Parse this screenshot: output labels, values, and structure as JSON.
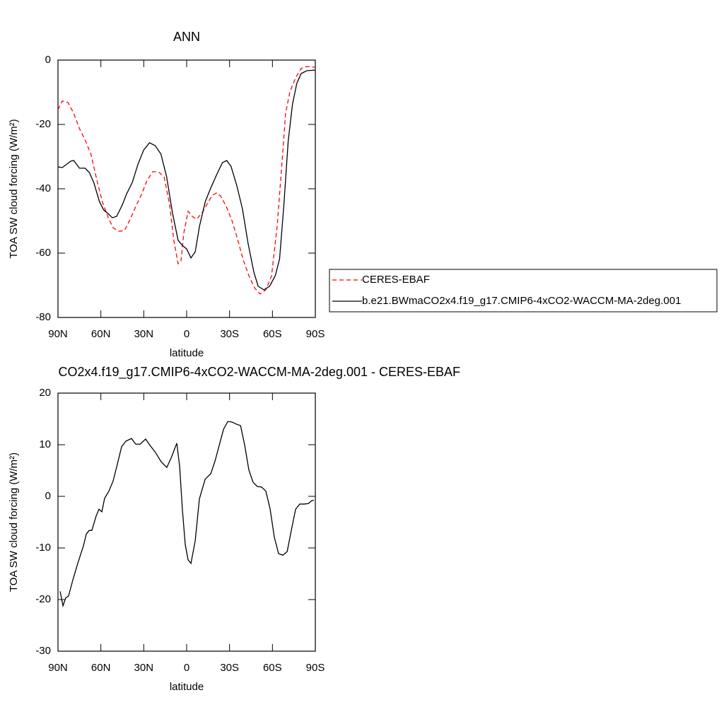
{
  "chart_data": [
    {
      "type": "line",
      "title": "ANN",
      "x_label": "latitude",
      "y_label": "TOA SW cloud forcing (W/m²)",
      "xlim": [
        90,
        -90
      ],
      "xticks": [
        {
          "value": 90,
          "label": "90N"
        },
        {
          "value": 60,
          "label": "60N"
        },
        {
          "value": 30,
          "label": "30N"
        },
        0,
        {
          "value": -30,
          "label": "30S"
        },
        {
          "value": -60,
          "label": "60S"
        },
        {
          "value": -90,
          "label": "90S"
        }
      ],
      "ylim": [
        -80,
        0
      ],
      "yticks": [
        -80,
        -60,
        -40,
        -20,
        0
      ],
      "legend": true,
      "series": [
        {
          "name": "CERES-EBAF",
          "color": "#ff0000",
          "dash": true,
          "x": [
            90,
            87,
            83,
            79,
            75,
            71,
            67,
            63,
            59,
            55,
            51.5,
            47.5,
            43.5,
            39.5,
            35.6,
            31.6,
            27.7,
            23.7,
            19.8,
            15.8,
            11.9,
            9,
            6,
            4,
            2,
            -1,
            -4,
            -7,
            -11,
            -15,
            -18,
            -21,
            -23.7,
            -27.7,
            -31.7,
            -35.6,
            -39.6,
            -43.5,
            -47.5,
            -51.4,
            -55.4,
            -59.4,
            -63.3,
            -66.3,
            -69.2,
            -72.2,
            -76.2,
            -80.1,
            -84,
            -90
          ],
          "values": [
            -15.4,
            -12.7,
            -13.2,
            -16.5,
            -21.3,
            -24.8,
            -29.2,
            -36.9,
            -44,
            -48.8,
            -52.1,
            -53.2,
            -53,
            -49.5,
            -45.5,
            -41.8,
            -37.4,
            -34.7,
            -34.7,
            -36.3,
            -45,
            -56,
            -63.3,
            -62.6,
            -53.8,
            -47,
            -48.6,
            -49.5,
            -47.3,
            -44.2,
            -42,
            -41.3,
            -42.2,
            -45.5,
            -49.9,
            -55.6,
            -62.2,
            -67,
            -70.8,
            -72.7,
            -71.4,
            -67,
            -51.6,
            -34.1,
            -16.5,
            -9.9,
            -5.5,
            -2.6,
            -2,
            -2.2
          ]
        },
        {
          "name": "b.e21.BWmaCO2x4.f19_g17.CMIP6-4xCO2-WACCM-MA-2deg.001",
          "color": "#000000",
          "dash": false,
          "x": [
            90,
            87,
            81,
            79,
            75,
            71,
            68,
            65,
            61,
            58,
            55,
            52,
            49,
            45,
            42,
            38,
            34,
            30,
            26,
            22,
            18,
            14,
            10,
            6,
            3,
            0,
            -3,
            -6,
            -9,
            -13,
            -17,
            -21,
            -25,
            -28,
            -31,
            -35,
            -39,
            -43,
            -47,
            -50,
            -54,
            -58,
            -62,
            -65,
            -68,
            -71,
            -74,
            -77,
            -80,
            -84,
            -90
          ],
          "values": [
            -33.2,
            -33.4,
            -31.4,
            -31.2,
            -33.6,
            -33.6,
            -35,
            -38,
            -44,
            -46.6,
            -47.7,
            -49,
            -48.6,
            -45,
            -41.6,
            -38,
            -32.3,
            -27.9,
            -25.7,
            -26.6,
            -29.2,
            -36.3,
            -47.3,
            -56,
            -57.6,
            -58.7,
            -61.5,
            -59.6,
            -51.6,
            -44,
            -39.6,
            -35.6,
            -31.9,
            -31.2,
            -33,
            -38.9,
            -46.2,
            -57.1,
            -65.9,
            -70.3,
            -71.4,
            -70.3,
            -67,
            -61.8,
            -45,
            -25.3,
            -13.8,
            -7.3,
            -4.2,
            -3.3,
            -3.1
          ]
        }
      ]
    },
    {
      "type": "line",
      "title": "CO2x4.f19_g17.CMIP6-4xCO2-WACCM-MA-2deg.001 - CERES-EBAF",
      "x_label": "latitude",
      "y_label": "TOA SW cloud forcing (W/m²)",
      "xlim": [
        90,
        -90
      ],
      "xticks": [
        {
          "value": 90,
          "label": "90N"
        },
        {
          "value": 60,
          "label": "60N"
        },
        {
          "value": 30,
          "label": "30N"
        },
        0,
        {
          "value": -30,
          "label": "30S"
        },
        {
          "value": -60,
          "label": "60S"
        },
        {
          "value": -90,
          "label": "90S"
        }
      ],
      "ylim": [
        -30,
        20
      ],
      "yticks": [
        -30,
        -20,
        -10,
        0,
        10,
        20
      ],
      "legend": false,
      "series": [
        {
          "color": "#000000",
          "dash": false,
          "x": [
            88.5,
            86.5,
            84.6,
            82.6,
            79.6,
            76.2,
            72.2,
            70.2,
            68.2,
            66.3,
            63.3,
            61.3,
            59.3,
            57.4,
            54.4,
            51.4,
            48.5,
            45.5,
            42.5,
            38.6,
            35.6,
            32.6,
            28.7,
            25.7,
            21.8,
            17.8,
            13.9,
            10.9,
            6.9,
            4.9,
            3,
            1,
            -1,
            -3,
            -6,
            -8.9,
            -12.9,
            -16.9,
            -19.8,
            -22.8,
            -25.8,
            -28.8,
            -31.7,
            -34.7,
            -37.7,
            -40.6,
            -43.5,
            -46.5,
            -49.5,
            -52.4,
            -55.4,
            -58.4,
            -61.3,
            -64.3,
            -67.3,
            -70.3,
            -73.2,
            -76.2,
            -79.1,
            -82.1,
            -85.1,
            -87.6,
            -89
          ],
          "values": [
            -18.4,
            -21.2,
            -19.7,
            -19.3,
            -16.2,
            -13,
            -9.6,
            -7.3,
            -6.6,
            -6.6,
            -3.8,
            -2.5,
            -3,
            -0.4,
            1,
            3,
            6.2,
            9.6,
            10.7,
            11.2,
            10.1,
            10.1,
            11.1,
            9.9,
            8.5,
            6.7,
            5.6,
            7.4,
            10.3,
            5.8,
            -2.5,
            -9.3,
            -12.3,
            -13,
            -8.6,
            -0.5,
            3.3,
            4.4,
            6.8,
            9.9,
            13,
            14.5,
            14.4,
            14,
            13.7,
            9.9,
            5.1,
            2.7,
            1.9,
            1.8,
            1,
            -2.5,
            -7.9,
            -11.1,
            -11.4,
            -10.7,
            -6.6,
            -2.5,
            -1.5,
            -1.5,
            -1.4,
            -0.8,
            -0.8
          ]
        }
      ]
    }
  ]
}
